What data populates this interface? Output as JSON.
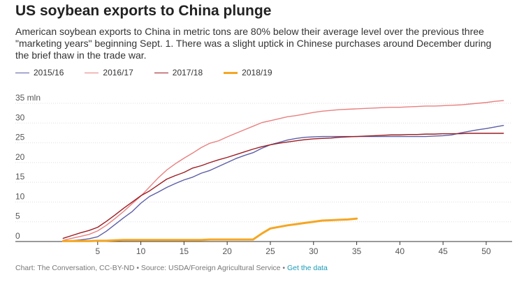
{
  "chart_data": {
    "type": "line",
    "title": "US soybean exports to China plunge",
    "subtitle": "American soybean exports to China in metric tons are 80% below their average level over the previous three \"marketing years\" beginning Sept. 1. There was a slight uptick in Chinese purchases around December during the brief thaw in the trade war.",
    "xlabel": "",
    "ylabel": "",
    "xlim": [
      0,
      53
    ],
    "ylim": [
      0,
      35
    ],
    "x_ticks": [
      5,
      10,
      15,
      20,
      25,
      30,
      35,
      40,
      45,
      50
    ],
    "y_ticks": [
      0,
      5,
      10,
      15,
      20,
      25,
      30,
      35
    ],
    "y_tick_labels": [
      "0",
      "5",
      "10",
      "15",
      "20",
      "25",
      "30",
      "35 mln"
    ],
    "grid": true,
    "legend_position": "top-left",
    "series": [
      {
        "name": "2015/16",
        "color": "#5b5ea6",
        "x": [
          1,
          2,
          3,
          4,
          5,
          6,
          7,
          8,
          9,
          10,
          11,
          12,
          13,
          14,
          15,
          16,
          17,
          18,
          19,
          20,
          21,
          22,
          23,
          24,
          25,
          26,
          27,
          28,
          29,
          30,
          31,
          32,
          33,
          34,
          35,
          36,
          37,
          38,
          39,
          40,
          41,
          42,
          43,
          44,
          45,
          46,
          47,
          48,
          49,
          50,
          51,
          52
        ],
        "values": [
          0.1,
          0.2,
          0.4,
          0.7,
          1.2,
          2.6,
          4.3,
          6.0,
          7.6,
          9.7,
          11.4,
          12.5,
          13.7,
          14.7,
          15.6,
          16.3,
          17.3,
          18.0,
          19.0,
          20.0,
          21.0,
          21.8,
          22.5,
          23.6,
          24.5,
          25.1,
          25.7,
          26.1,
          26.4,
          26.5,
          26.6,
          26.6,
          26.6,
          26.6,
          26.6,
          26.6,
          26.6,
          26.6,
          26.6,
          26.6,
          26.6,
          26.6,
          26.6,
          26.7,
          26.8,
          27.0,
          27.5,
          27.9,
          28.3,
          28.6,
          29.0,
          29.4
        ]
      },
      {
        "name": "2016/17",
        "color": "#e88080",
        "x": [
          1,
          2,
          3,
          4,
          5,
          6,
          7,
          8,
          9,
          10,
          11,
          12,
          13,
          14,
          15,
          16,
          17,
          18,
          19,
          20,
          21,
          22,
          23,
          24,
          25,
          26,
          27,
          28,
          29,
          30,
          31,
          32,
          33,
          34,
          35,
          36,
          37,
          38,
          39,
          40,
          41,
          42,
          43,
          44,
          45,
          46,
          47,
          48,
          49,
          50,
          51,
          52
        ],
        "values": [
          0.3,
          0.8,
          1.3,
          1.8,
          2.7,
          4.1,
          5.8,
          7.6,
          9.6,
          11.5,
          13.8,
          16.1,
          18.1,
          19.7,
          21.1,
          22.4,
          23.8,
          24.9,
          25.5,
          26.5,
          27.4,
          28.3,
          29.2,
          30.1,
          30.6,
          31.1,
          31.6,
          31.9,
          32.3,
          32.7,
          33.0,
          33.2,
          33.4,
          33.5,
          33.6,
          33.7,
          33.8,
          33.9,
          34.0,
          34.0,
          34.1,
          34.2,
          34.3,
          34.3,
          34.4,
          34.5,
          34.6,
          34.8,
          35.0,
          35.2,
          35.5,
          35.7
        ]
      },
      {
        "name": "2017/18",
        "color": "#9c1c22",
        "x": [
          1,
          2,
          3,
          4,
          5,
          6,
          7,
          8,
          9,
          10,
          11,
          12,
          13,
          14,
          15,
          16,
          17,
          18,
          19,
          20,
          21,
          22,
          23,
          24,
          25,
          26,
          27,
          28,
          29,
          30,
          31,
          32,
          33,
          34,
          35,
          36,
          37,
          38,
          39,
          40,
          41,
          42,
          43,
          44,
          45,
          46,
          47,
          48,
          49,
          50,
          51,
          52
        ],
        "values": [
          0.8,
          1.5,
          2.2,
          2.8,
          3.6,
          5.1,
          6.7,
          8.4,
          10.0,
          11.6,
          12.8,
          14.3,
          15.8,
          16.7,
          17.5,
          18.6,
          19.2,
          20.0,
          20.7,
          21.3,
          22.0,
          22.7,
          23.4,
          24.0,
          24.5,
          24.9,
          25.2,
          25.5,
          25.8,
          26.0,
          26.1,
          26.2,
          26.4,
          26.5,
          26.6,
          26.7,
          26.8,
          26.9,
          27.0,
          27.0,
          27.1,
          27.1,
          27.2,
          27.2,
          27.3,
          27.3,
          27.3,
          27.4,
          27.4,
          27.4,
          27.4,
          27.4
        ]
      },
      {
        "name": "2018/19",
        "color": "#f5a623",
        "x": [
          1,
          2,
          3,
          4,
          5,
          6,
          7,
          8,
          9,
          10,
          11,
          12,
          13,
          14,
          15,
          16,
          17,
          18,
          19,
          20,
          21,
          22,
          23,
          24,
          25,
          26,
          27,
          28,
          29,
          30,
          31,
          32,
          33,
          34,
          35
        ],
        "values": [
          0.1,
          0.1,
          0.1,
          0.1,
          0.2,
          0.2,
          0.3,
          0.4,
          0.4,
          0.4,
          0.4,
          0.4,
          0.4,
          0.4,
          0.4,
          0.4,
          0.4,
          0.5,
          0.5,
          0.5,
          0.5,
          0.5,
          0.5,
          2.0,
          3.3,
          3.7,
          4.1,
          4.4,
          4.7,
          5.0,
          5.3,
          5.4,
          5.5,
          5.6,
          5.8
        ]
      }
    ]
  },
  "footer": {
    "credit": "Chart: The Conversation, CC-BY-ND • Source: USDA/Foreign Agricultural Service • ",
    "link_label": "Get the data"
  }
}
